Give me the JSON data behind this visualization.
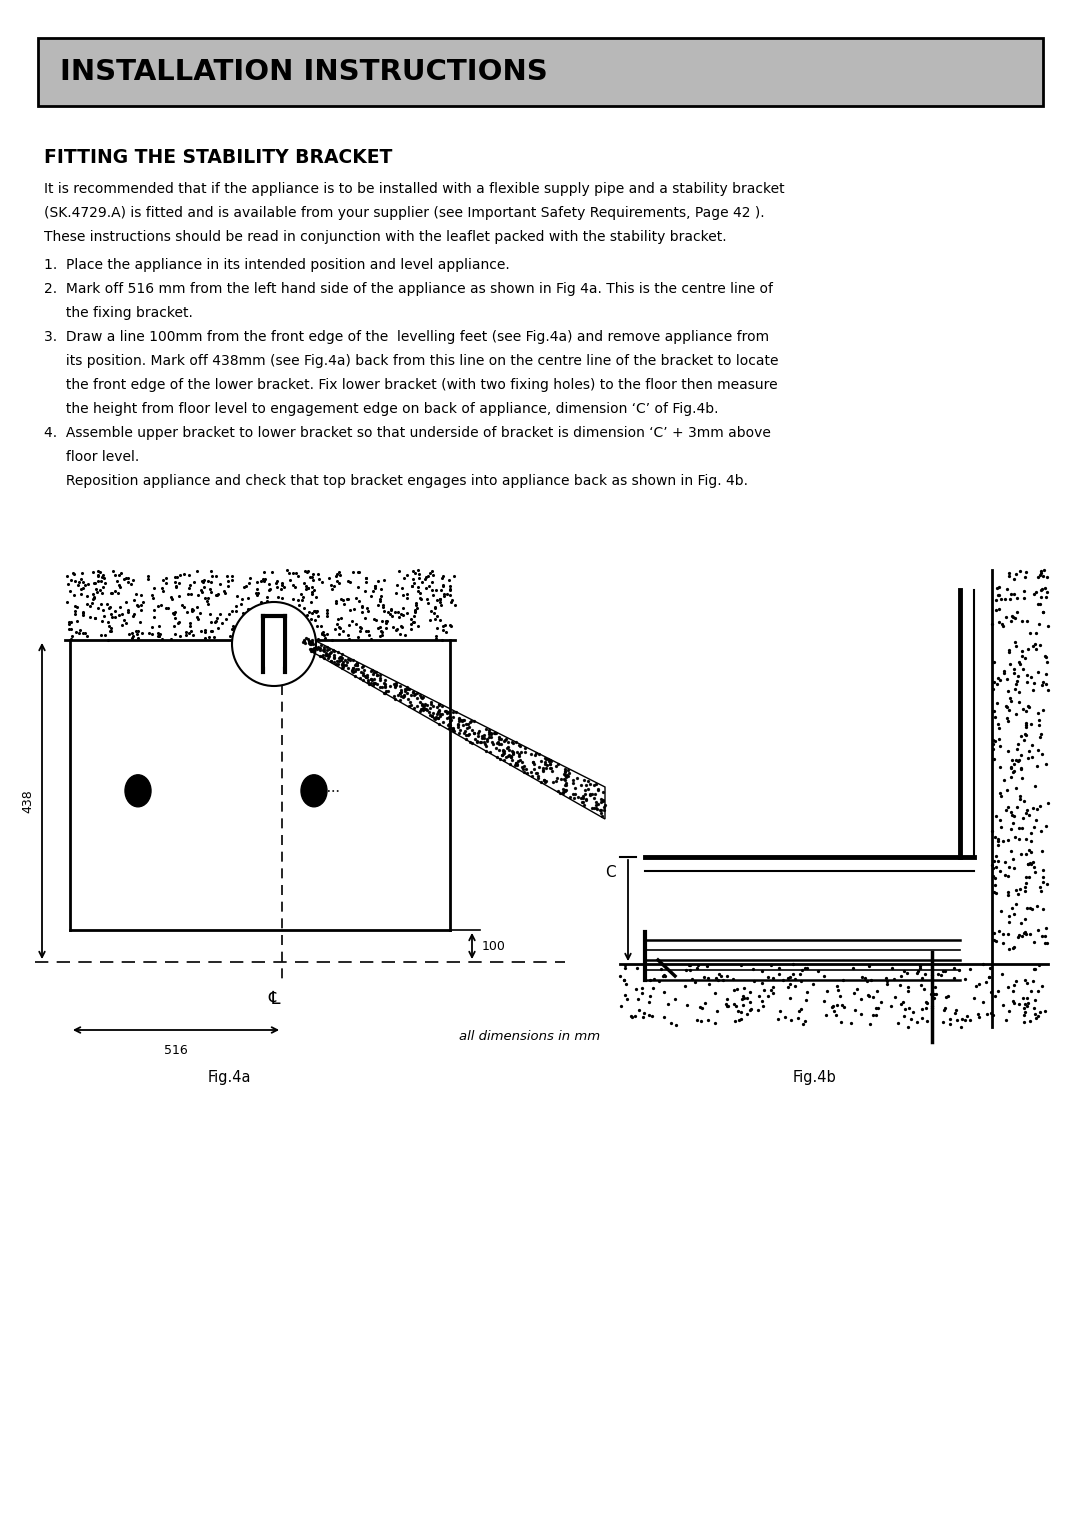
{
  "title_banner": "INSTALLATION INSTRUCTIONS",
  "title_banner_bg": "#b8b8b8",
  "title_banner_border": "#000000",
  "section_title": "FITTING THE STABILITY BRACKET",
  "para_text": "It is recommended that if the appliance is to be installed with a flexible supply pipe and a stability bracket (SK.4729.A) is fitted and is available from your supplier (see Important Safety Requirements, Page 42 ). These instructions should be read in conjunction with the leaflet packed with the stability bracket.",
  "item1": "1.  Place the appliance in its intended position and level appliance.",
  "item2a": "2.  Mark off 516 mm from the left hand side of the appliance as shown in Fig 4a. This is the centre line of",
  "item2b": "     the fixing bracket.",
  "item3a": "3.  Draw a line 100mm from the front edge of the  levelling feet (see Fig.4a) and remove appliance from",
  "item3b": "     its position. Mark off 438mm (see Fig.4a) back from this line on the centre line of the bracket to locate",
  "item3c": "     the front edge of the lower bracket. Fix lower bracket (with two fixing holes) to the floor then measure",
  "item3d": "     the height from floor level to engagement edge on back of appliance, dimension ‘C’ of Fig.4b.",
  "item4a": "4.  Assemble upper bracket to lower bracket so that underside of bracket is dimension ‘C’ + 3mm above",
  "item4b": "     floor level.",
  "item4c": "     Reposition appliance and check that top bracket engages into appliance back as shown in Fig. 4b.",
  "fig4a_label": "Fig.4a",
  "fig4b_label": "Fig.4b",
  "dim_text": "all dimensions in mm",
  "dim_516": "516",
  "dim_438": "438",
  "dim_100": "100",
  "dim_C": "C",
  "background": "#ffffff",
  "text_color": "#000000",
  "line_color": "#000000"
}
